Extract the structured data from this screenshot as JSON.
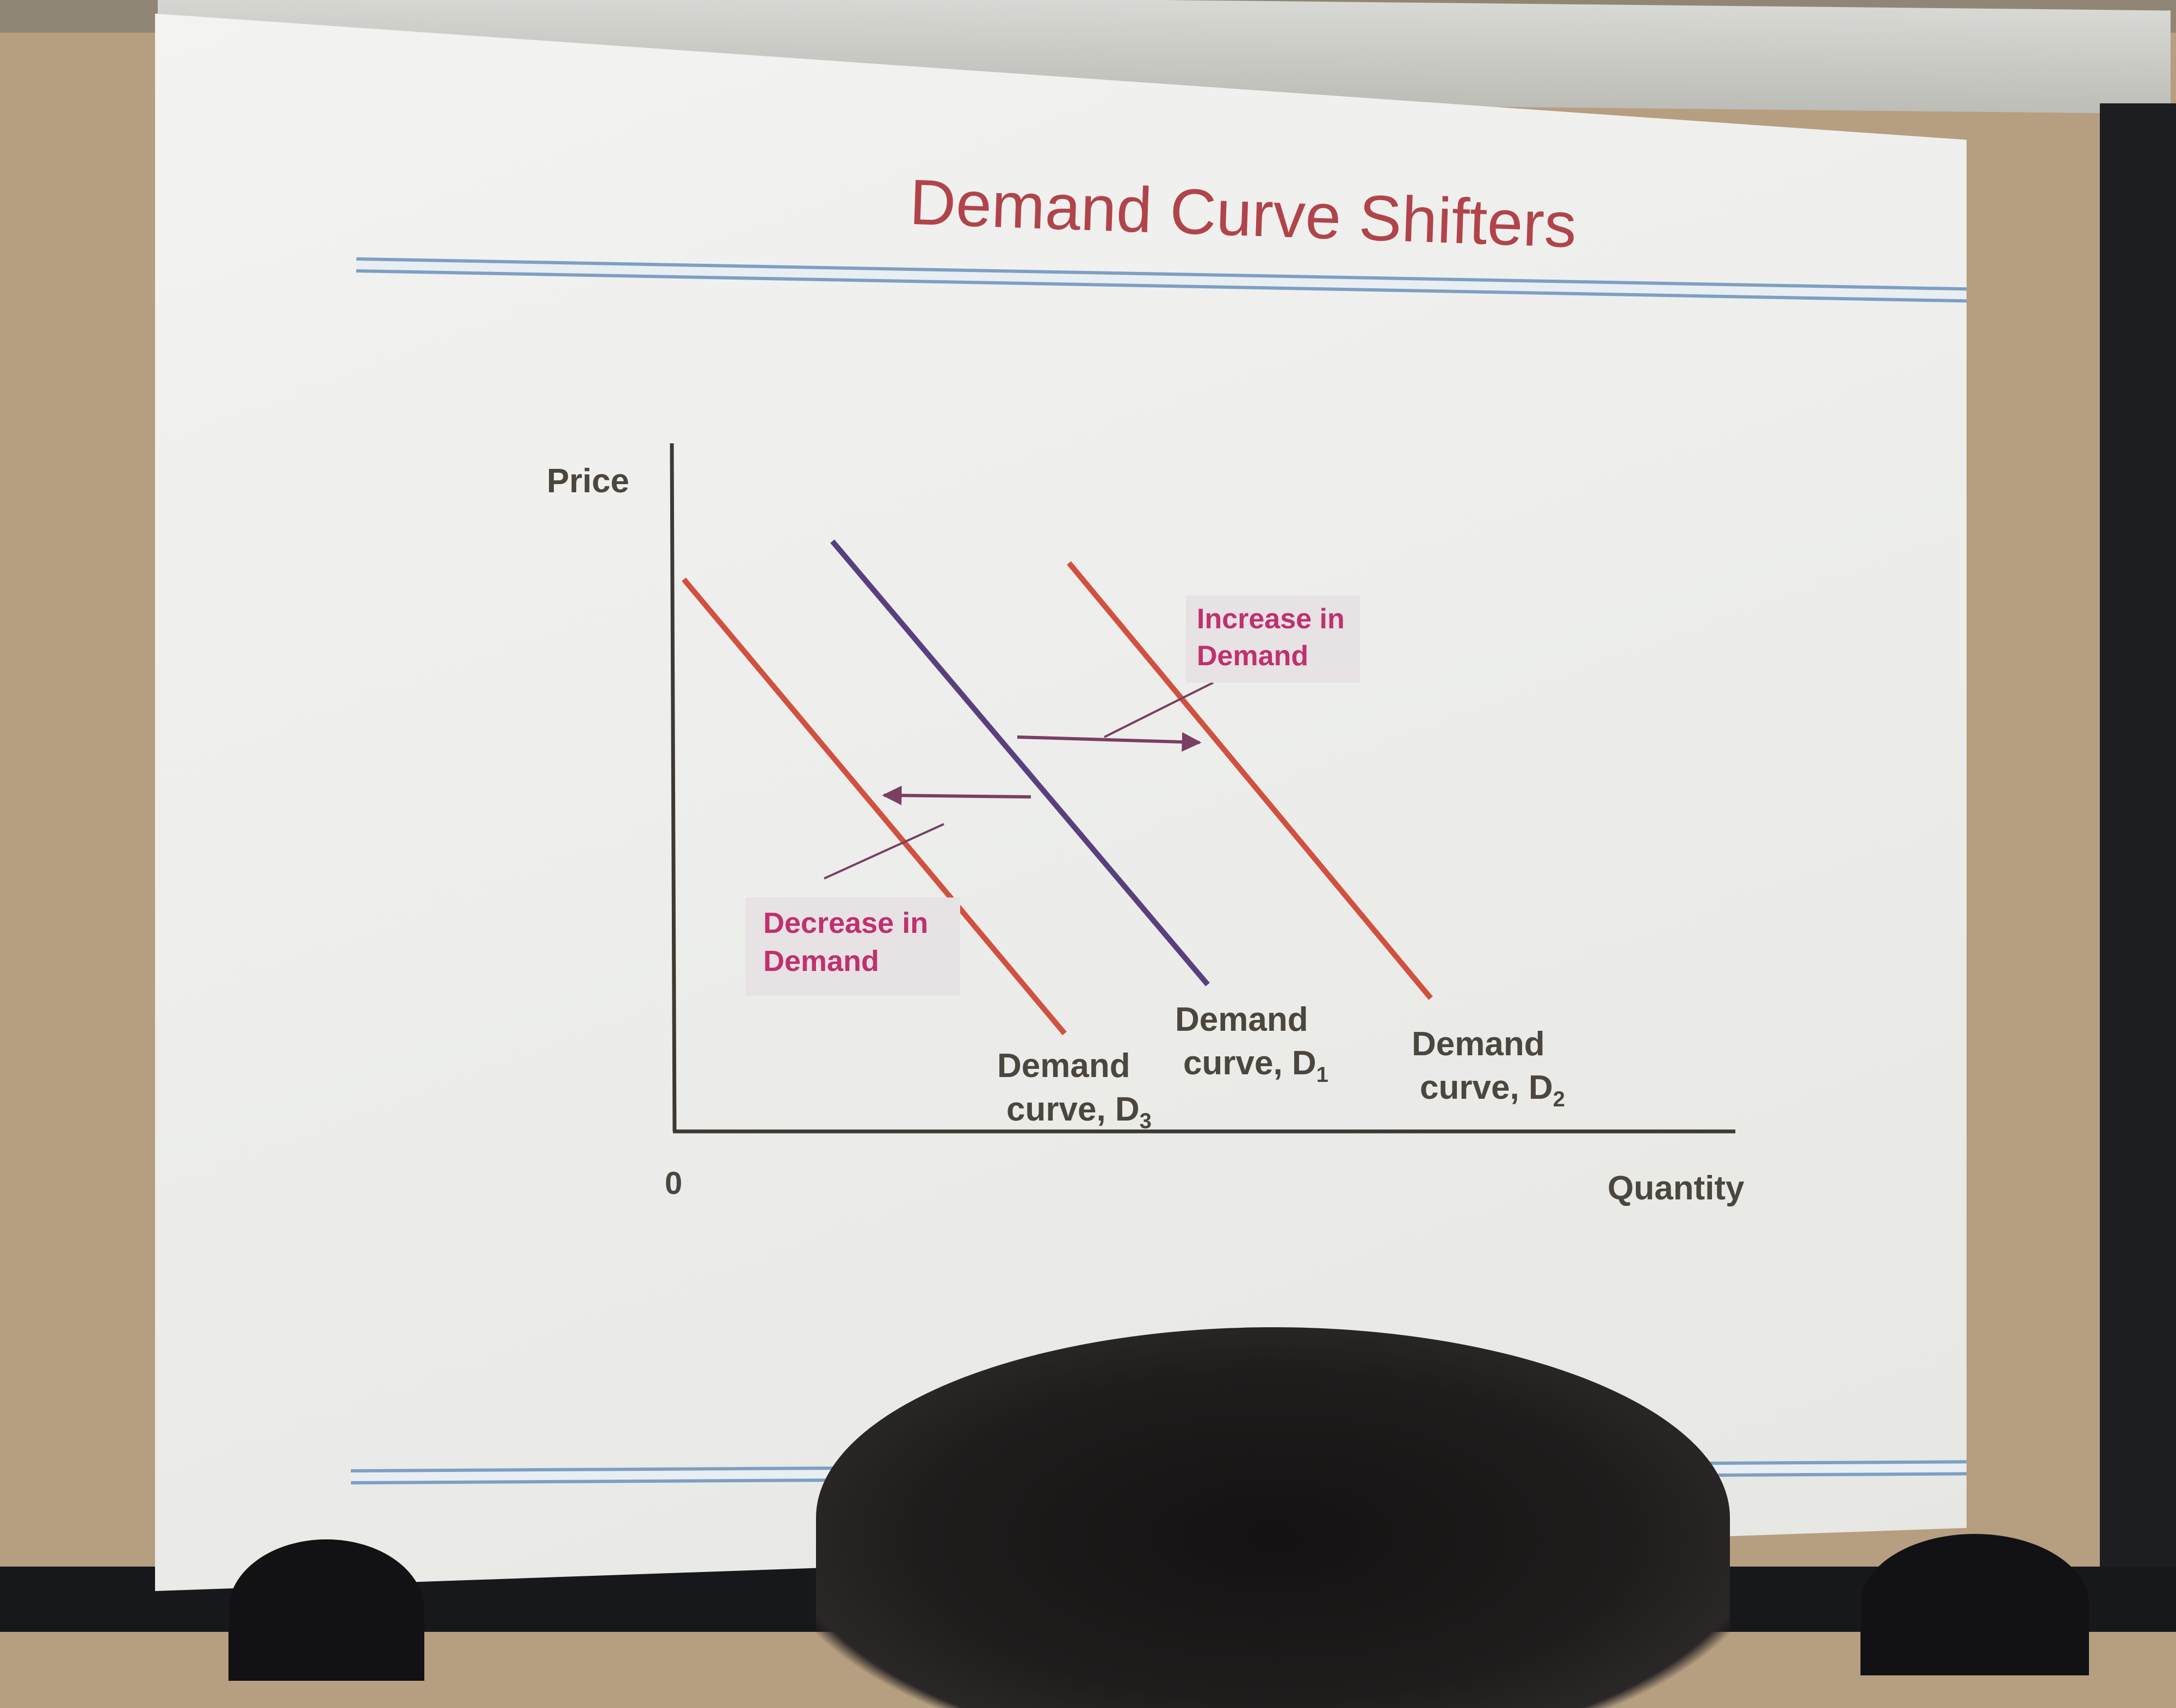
{
  "slide": {
    "title": "Demand Curve Shifters"
  },
  "chart_data": {
    "type": "line",
    "title": "Demand Curve Shifters",
    "xlabel": "Quantity",
    "ylabel": "Price",
    "origin_label": "0",
    "grid": false,
    "series": [
      {
        "name": "Demand curve, D1",
        "label_line1": "Demand",
        "label_line2": "curve, D",
        "subscript": "1",
        "color": "#5a3f7e"
      },
      {
        "name": "Demand curve, D2",
        "label_line1": "Demand",
        "label_line2": "curve, D",
        "subscript": "2",
        "color": "#d2503f"
      },
      {
        "name": "Demand curve, D3",
        "label_line1": "Demand",
        "label_line2": "curve, D",
        "subscript": "3",
        "color": "#d2503f"
      }
    ],
    "annotations": [
      {
        "label_line1": "Increase in",
        "label_line2": "Demand",
        "color": "#c0306f"
      },
      {
        "label_line1": "Decrease in",
        "label_line2": "Demand",
        "color": "#c0306f"
      }
    ]
  }
}
